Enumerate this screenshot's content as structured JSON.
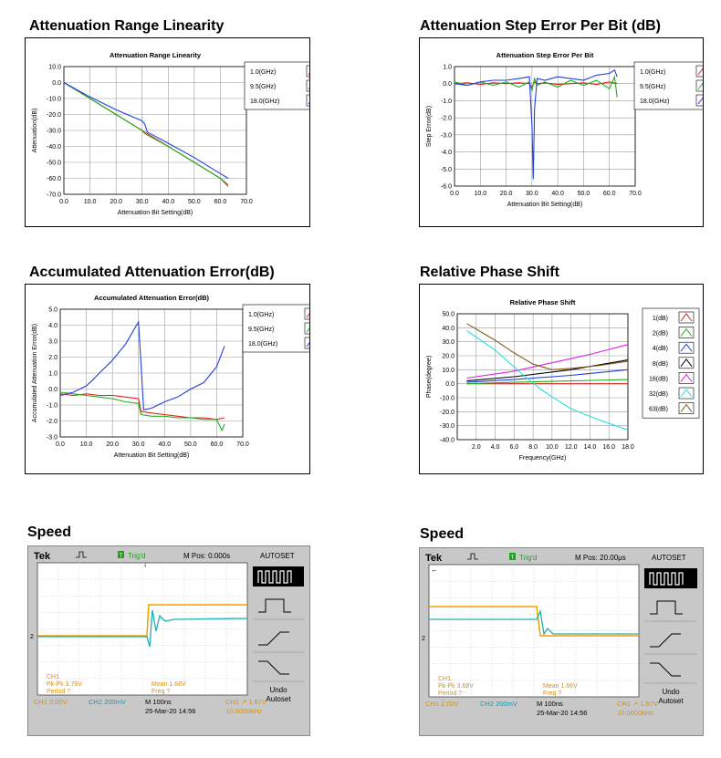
{
  "sections": {
    "s1": "Attenuation Range Linearity",
    "s2": "Attenuation Step Error Per Bit (dB)",
    "s3": "Accumulated Attenuation Error(dB)",
    "s4": "Relative Phase Shift",
    "s5": "Speed",
    "s6": "Speed"
  },
  "colors": {
    "red": "#e02020",
    "green": "#20b020",
    "blue": "#2040e0",
    "black": "#000000",
    "magenta": "#e020e0",
    "cyan": "#20e0e0",
    "olive": "#806020",
    "trace_orange": "#f0a000",
    "trace_cyan": "#20b0b0"
  },
  "chart_data": [
    {
      "type": "line",
      "title": "Attenuation Range Linearity",
      "xlabel": "Attenuation Bit Setting(dB)",
      "ylabel": "Attenuation(dB)",
      "xlim": [
        0,
        70
      ],
      "ylim": [
        -70,
        10
      ],
      "xticks": [
        "0.0",
        "10.0",
        "20.0",
        "30.0",
        "40.0",
        "50.0",
        "60.0",
        "70.0"
      ],
      "yticks": [
        "10.0",
        "0.0",
        "-10.0",
        "-20.0",
        "-30.0",
        "-40.0",
        "-50.0",
        "-60.0",
        "-70.0"
      ],
      "series": [
        {
          "name": "1.0(GHz)",
          "color": "red",
          "x": [
            0,
            10,
            20,
            30,
            31,
            40,
            50,
            60,
            63
          ],
          "y": [
            0,
            -10,
            -20,
            -30,
            -31,
            -40,
            -50,
            -60,
            -65
          ]
        },
        {
          "name": "9.5(GHz)",
          "color": "green",
          "x": [
            0,
            10,
            20,
            30,
            31,
            40,
            50,
            60,
            63
          ],
          "y": [
            0,
            -10,
            -20,
            -30,
            -32,
            -40,
            -50,
            -60,
            -64
          ]
        },
        {
          "name": "18.0(GHz)",
          "color": "blue",
          "x": [
            0,
            10,
            20,
            30,
            31,
            32,
            40,
            50,
            60,
            63
          ],
          "y": [
            0,
            -9,
            -17,
            -24,
            -26,
            -31,
            -38,
            -47,
            -57,
            -60
          ]
        }
      ]
    },
    {
      "type": "line",
      "title": "Attenuation Step Error Per Bit",
      "xlabel": "Attenuation Bit Setting(dB)",
      "ylabel": "Step Error(dB)",
      "xlim": [
        0,
        70
      ],
      "ylim": [
        -6,
        1
      ],
      "xticks": [
        "0.0",
        "10.0",
        "20.0",
        "30.0",
        "40.0",
        "50.0",
        "60.0",
        "70.0"
      ],
      "yticks": [
        "1.0",
        "0.0",
        "-1.0",
        "-2.0",
        "-3.0",
        "-4.0",
        "-5.0",
        "-6.0"
      ],
      "series": [
        {
          "name": "1.0(GHz)",
          "color": "red",
          "x": [
            0,
            5,
            10,
            15,
            20,
            25,
            29,
            30,
            31,
            32,
            35,
            40,
            45,
            50,
            55,
            60,
            63
          ],
          "y": [
            0,
            0.05,
            -0.05,
            0.05,
            0,
            0.05,
            0,
            -0.2,
            0.1,
            0,
            0.05,
            -0.05,
            0,
            0.05,
            -0.05,
            0.1,
            0
          ]
        },
        {
          "name": "9.5(GHz)",
          "color": "green",
          "x": [
            0,
            5,
            10,
            15,
            20,
            25,
            29,
            30,
            31,
            32,
            35,
            40,
            45,
            50,
            55,
            60,
            62,
            63
          ],
          "y": [
            0.1,
            -0.1,
            0.1,
            -0.1,
            0.1,
            -0.2,
            0.1,
            -0.4,
            0.3,
            -0.1,
            0.1,
            -0.2,
            0.2,
            -0.1,
            0.2,
            -0.3,
            0.4,
            -0.8
          ]
        },
        {
          "name": "18.0(GHz)",
          "color": "blue",
          "x": [
            0,
            5,
            10,
            15,
            20,
            25,
            29,
            30,
            30.5,
            31,
            32,
            35,
            40,
            45,
            50,
            55,
            60,
            62,
            63
          ],
          "y": [
            0,
            -0.1,
            0.1,
            0.2,
            0.2,
            0.3,
            0.4,
            -2.5,
            -5.6,
            -1.5,
            0.3,
            0.2,
            0.4,
            0.3,
            0.2,
            0.5,
            0.6,
            0.8,
            0.4
          ]
        }
      ]
    },
    {
      "type": "line",
      "title": "Accumulated Attenuation Error(dB)",
      "xlabel": "Attenuation Bit Setting(dB)",
      "ylabel": "Accumulated Attenuation Error(dB)",
      "xlim": [
        0,
        70
      ],
      "ylim": [
        -3,
        5
      ],
      "xticks": [
        "0.0",
        "10.0",
        "20.0",
        "30.0",
        "40.0",
        "50.0",
        "60.0",
        "70.0"
      ],
      "yticks": [
        "5.0",
        "4.0",
        "3.0",
        "2.0",
        "1.0",
        "0.0",
        "-1.0",
        "-2.0",
        "-3.0"
      ],
      "series": [
        {
          "name": "1.0(GHz)",
          "color": "red",
          "x": [
            0,
            5,
            10,
            15,
            20,
            25,
            30,
            31,
            35,
            40,
            45,
            50,
            55,
            60,
            63
          ],
          "y": [
            -0.3,
            -0.4,
            -0.3,
            -0.4,
            -0.4,
            -0.5,
            -0.6,
            -1.4,
            -1.5,
            -1.6,
            -1.7,
            -1.8,
            -1.8,
            -1.9,
            -1.8
          ]
        },
        {
          "name": "9.5(GHz)",
          "color": "green",
          "x": [
            0,
            5,
            10,
            15,
            20,
            25,
            30,
            31,
            35,
            40,
            45,
            50,
            55,
            60,
            62,
            63
          ],
          "y": [
            -0.2,
            -0.3,
            -0.4,
            -0.5,
            -0.6,
            -0.8,
            -0.9,
            -1.6,
            -1.7,
            -1.7,
            -1.8,
            -1.8,
            -1.9,
            -1.9,
            -2.6,
            -2.2
          ]
        },
        {
          "name": "18.0(GHz)",
          "color": "blue",
          "x": [
            0,
            5,
            10,
            12,
            15,
            20,
            25,
            30,
            31,
            32,
            35,
            40,
            45,
            50,
            55,
            60,
            63
          ],
          "y": [
            -0.4,
            -0.2,
            0.2,
            0.5,
            1.0,
            1.8,
            2.8,
            4.2,
            1.5,
            -1.3,
            -1.2,
            -0.8,
            -0.5,
            0.0,
            0.4,
            1.4,
            2.7
          ]
        }
      ]
    },
    {
      "type": "line",
      "title": "Relative Phase Shift",
      "xlabel": "Frequency(GHz)",
      "ylabel": "Phase(degree)",
      "xlim": [
        0,
        18
      ],
      "ylim": [
        -40,
        50
      ],
      "xticks": [
        "2.0",
        "4.0",
        "6.0",
        "8.0",
        "10.0",
        "12.0",
        "14.0",
        "16.0",
        "18.0"
      ],
      "yticks": [
        "50.0",
        "40.0",
        "30.0",
        "20.0",
        "10.0",
        "0.0",
        "-10.0",
        "-20.0",
        "-30.0",
        "-40.0"
      ],
      "series": [
        {
          "name": "1(dB)",
          "color": "red",
          "x": [
            1,
            18
          ],
          "y": [
            0,
            0
          ]
        },
        {
          "name": "2(dB)",
          "color": "green",
          "x": [
            1,
            6,
            12,
            18
          ],
          "y": [
            0,
            1,
            2,
            3
          ]
        },
        {
          "name": "4(dB)",
          "color": "blue",
          "x": [
            1,
            6,
            12,
            18
          ],
          "y": [
            1,
            3,
            6,
            10
          ]
        },
        {
          "name": "8(dB)",
          "color": "black",
          "x": [
            1,
            6,
            12,
            18
          ],
          "y": [
            2,
            5,
            10,
            17
          ]
        },
        {
          "name": "16(dB)",
          "color": "magenta",
          "x": [
            1,
            6,
            10,
            14,
            18
          ],
          "y": [
            4,
            9,
            15,
            21,
            28
          ]
        },
        {
          "name": "32(dB)",
          "color": "cyan",
          "x": [
            1,
            4,
            7,
            9,
            12,
            15,
            18
          ],
          "y": [
            38,
            24,
            6,
            -5,
            -18,
            -26,
            -33
          ]
        },
        {
          "name": "63(dB)",
          "color": "olive",
          "x": [
            1,
            4,
            6,
            8,
            10,
            12,
            15,
            18
          ],
          "y": [
            43,
            31,
            22,
            14,
            10,
            11,
            13,
            16
          ]
        }
      ]
    }
  ],
  "scopes": [
    {
      "brand": "Tek",
      "trig": "Trig'd",
      "mpos": "M Pos: 0.000s",
      "autoset": "AUTOSET",
      "readout1": "CH1",
      "readout2": "Pk-Pk 3.76V",
      "readout3": "Period ?",
      "mean": "Mean 1.68V",
      "freq": "Freq ?",
      "ch1": "CH1  2.00V",
      "ch2": "CH2  200mV",
      "m": "M 100ns",
      "date": "25-Mar-20 14:56",
      "trig_lvl": "CH1  ↗  1.67V",
      "trig_freq": "10.0000kHz",
      "undo": "Undo",
      "autoset_btn": "Autoset",
      "marker": "2"
    },
    {
      "brand": "Tek",
      "trig": "Trig'd",
      "mpos": "M Pos: 20.00μs",
      "autoset": "AUTOSET",
      "readout1": "CH1",
      "readout2": "Pk-Pk 3.68V",
      "readout3": "Period ?",
      "mean": "Mean 1.66V",
      "freq": "Freq ?",
      "ch1": "CH1  2.00V",
      "ch2": "CH2  200mV",
      "m": "M 100ns",
      "date": "25-Mar-20 14:56",
      "trig_lvl": "CH1  ↗  1.67V",
      "trig_freq": "10.0000kHz",
      "undo": "Undo",
      "autoset_btn": "Autoset",
      "marker": "2"
    }
  ]
}
